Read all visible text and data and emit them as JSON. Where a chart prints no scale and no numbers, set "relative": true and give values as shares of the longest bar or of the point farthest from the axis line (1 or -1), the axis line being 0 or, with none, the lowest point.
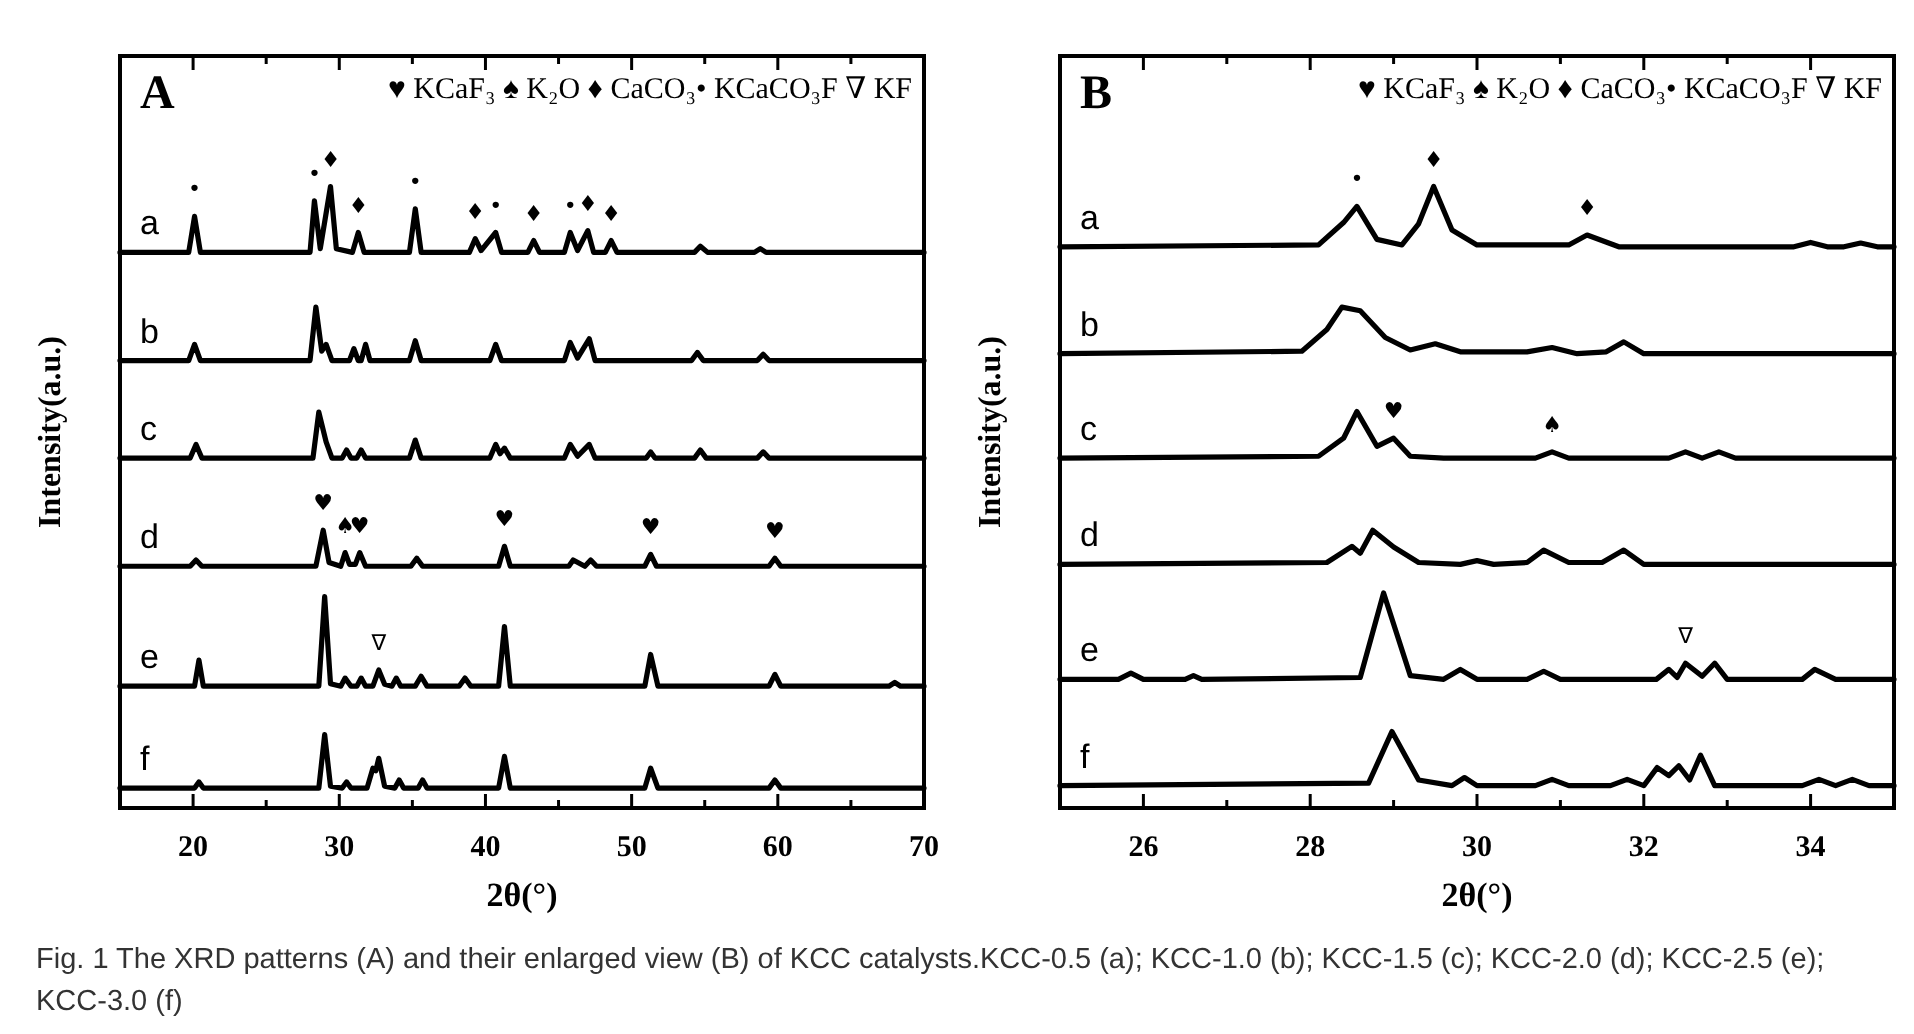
{
  "chart_data": [
    {
      "type": "line",
      "title": "A",
      "xlabel": "2θ(°)",
      "ylabel": "Intensity(a.u.)",
      "relative": true,
      "line_style": "solid",
      "xlim": [
        15,
        70
      ],
      "xticks": [
        20,
        {
          "value": 25,
          "label": null
        },
        30,
        {
          "value": 35,
          "label": null
        },
        40,
        {
          "value": 45,
          "label": null
        },
        50,
        {
          "value": 55,
          "label": null
        },
        60,
        {
          "value": 65,
          "label": null
        },
        70
      ],
      "series": [
        {
          "name": "a",
          "color": "#000000",
          "x": [
            15,
            19.7,
            20.1,
            20.5,
            28,
            28.3,
            28.7,
            29.4,
            29.8,
            30.9,
            31.3,
            31.7,
            34.8,
            35.2,
            35.6,
            38.9,
            39.3,
            39.7,
            40.7,
            41.1,
            42.9,
            43.3,
            43.7,
            45.4,
            45.8,
            46.3,
            47.0,
            47.4,
            48.2,
            48.6,
            49,
            54.3,
            54.7,
            55.2,
            58.4,
            58.8,
            59.2,
            70
          ],
          "values": [
            0.894,
            0.894,
            0.952,
            0.894,
            0.894,
            0.977,
            0.9,
            1.0,
            0.9,
            0.894,
            0.926,
            0.894,
            0.894,
            0.964,
            0.894,
            0.894,
            0.916,
            0.897,
            0.926,
            0.894,
            0.894,
            0.913,
            0.894,
            0.894,
            0.926,
            0.897,
            0.929,
            0.894,
            0.894,
            0.913,
            0.894,
            0.894,
            0.904,
            0.894,
            0.894,
            0.9,
            0.894,
            0.894
          ]
        },
        {
          "name": "b",
          "color": "#000000",
          "x": [
            15,
            19.7,
            20.1,
            20.5,
            28,
            28.4,
            28.8,
            29.1,
            29.5,
            30.7,
            31.0,
            31.3,
            31.5,
            31.8,
            32.1,
            34.8,
            35.2,
            35.6,
            40.3,
            40.7,
            41.1,
            45.4,
            45.8,
            46.3,
            47.1,
            47.5,
            54.1,
            54.5,
            54.9,
            58.6,
            59.0,
            59.4,
            70
          ],
          "values": [
            0.72,
            0.72,
            0.746,
            0.72,
            0.72,
            0.806,
            0.735,
            0.746,
            0.72,
            0.72,
            0.739,
            0.72,
            0.72,
            0.746,
            0.72,
            0.72,
            0.752,
            0.72,
            0.72,
            0.746,
            0.72,
            0.72,
            0.749,
            0.724,
            0.755,
            0.72,
            0.72,
            0.733,
            0.72,
            0.72,
            0.73,
            0.72,
            0.72
          ]
        },
        {
          "name": "c",
          "color": "#000000",
          "x": [
            15,
            19.8,
            20.2,
            20.6,
            28.2,
            28.6,
            29.1,
            29.5,
            30.2,
            30.5,
            30.8,
            31.2,
            31.5,
            31.8,
            34.8,
            35.2,
            35.6,
            40.3,
            40.7,
            41.0,
            41.3,
            41.7,
            45.4,
            45.8,
            46.3,
            47.1,
            47.5,
            51.0,
            51.3,
            51.6,
            54.3,
            54.7,
            55.1,
            58.6,
            59.0,
            59.4,
            70
          ],
          "values": [
            0.563,
            0.563,
            0.585,
            0.563,
            0.563,
            0.637,
            0.589,
            0.563,
            0.563,
            0.576,
            0.563,
            0.563,
            0.576,
            0.563,
            0.563,
            0.592,
            0.563,
            0.563,
            0.585,
            0.57,
            0.579,
            0.563,
            0.563,
            0.585,
            0.566,
            0.585,
            0.563,
            0.563,
            0.573,
            0.563,
            0.563,
            0.576,
            0.563,
            0.563,
            0.573,
            0.563,
            0.563
          ]
        },
        {
          "name": "d",
          "color": "#000000",
          "x": [
            15,
            19.8,
            20.2,
            20.6,
            28.4,
            28.9,
            29.3,
            30.1,
            30.4,
            30.7,
            31.1,
            31.4,
            31.8,
            34.9,
            35.3,
            35.7,
            40.9,
            41.3,
            41.7,
            45.7,
            46,
            46.8,
            47.2,
            47.6,
            50.9,
            51.3,
            51.7,
            59.4,
            59.8,
            60.2,
            70
          ],
          "values": [
            0.389,
            0.389,
            0.399,
            0.389,
            0.389,
            0.447,
            0.395,
            0.389,
            0.411,
            0.392,
            0.392,
            0.411,
            0.389,
            0.389,
            0.402,
            0.389,
            0.389,
            0.421,
            0.389,
            0.389,
            0.399,
            0.389,
            0.399,
            0.389,
            0.389,
            0.408,
            0.389,
            0.389,
            0.402,
            0.389,
            0.389
          ]
        },
        {
          "name": "e",
          "color": "#000000",
          "x": [
            15,
            20.1,
            20.4,
            20.7,
            28.6,
            29.0,
            29.4,
            30.1,
            30.4,
            30.8,
            31.2,
            31.5,
            31.8,
            32.3,
            32.7,
            33.1,
            33.6,
            33.9,
            34.2,
            35.2,
            35.6,
            36,
            38.2,
            38.6,
            39,
            40.9,
            41.3,
            41.7,
            50.9,
            51.3,
            51.8,
            59.4,
            59.8,
            60.2,
            67.6,
            68,
            68.4,
            70
          ],
          "values": [
            0.196,
            0.196,
            0.238,
            0.196,
            0.196,
            0.34,
            0.2,
            0.196,
            0.209,
            0.196,
            0.196,
            0.209,
            0.196,
            0.196,
            0.222,
            0.199,
            0.196,
            0.209,
            0.196,
            0.196,
            0.212,
            0.196,
            0.196,
            0.209,
            0.196,
            0.196,
            0.292,
            0.196,
            0.196,
            0.247,
            0.196,
            0.196,
            0.215,
            0.196,
            0.196,
            0.202,
            0.196,
            0.196
          ]
        },
        {
          "name": "f",
          "color": "#000000",
          "x": [
            15,
            20.1,
            20.4,
            20.7,
            28.6,
            29.0,
            29.4,
            30.2,
            30.5,
            30.8,
            31.9,
            32.3,
            32.5,
            32.7,
            33.1,
            33.8,
            34.1,
            34.4,
            35.4,
            35.7,
            36,
            40.9,
            41.3,
            41.7,
            50.9,
            51.3,
            51.8,
            59.4,
            59.8,
            60.2,
            70
          ],
          "values": [
            0.032,
            0.032,
            0.042,
            0.032,
            0.032,
            0.118,
            0.035,
            0.032,
            0.042,
            0.032,
            0.032,
            0.064,
            0.06,
            0.08,
            0.035,
            0.032,
            0.045,
            0.032,
            0.032,
            0.045,
            0.032,
            0.032,
            0.083,
            0.032,
            0.032,
            0.064,
            0.032,
            0.032,
            0.045,
            0.032,
            0.032
          ]
        }
      ],
      "annotations": [
        "♥ KCaF₃ ♠ K₂O ♦ CaCO₃• KCaCO₃F ∇ KF",
        "Fig. 1 The XRD patterns (A) and their enlarged view (B) of KCC catalysts.KCC-0.5 (a); KCC-1.0 (b); KCC-1.5 (c); KCC-2.0 (d); KCC-2.5 (e); KCC-3.0 (f)",
        {
          "text": "•",
          "x": 20.1,
          "y": 0.952
        },
        {
          "text": "•",
          "x": 28.3,
          "y": 0.977
        },
        {
          "text": "♦",
          "x": 29.4,
          "y": 1.0
        },
        {
          "text": "♦",
          "x": 31.3,
          "y": 0.926
        },
        {
          "text": "•",
          "x": 35.2,
          "y": 0.964
        },
        {
          "text": "♦",
          "x": 39.3,
          "y": 0.916
        },
        {
          "text": "•",
          "x": 40.7,
          "y": 0.926
        },
        {
          "text": "♦",
          "x": 43.3,
          "y": 0.913
        },
        {
          "text": "•",
          "x": 45.8,
          "y": 0.926
        },
        {
          "text": "♦",
          "x": 47.0,
          "y": 0.929
        },
        {
          "text": "♦",
          "x": 48.6,
          "y": 0.913
        },
        {
          "text": "♥",
          "x": 28.9,
          "y": 0.447
        },
        {
          "text": "♠",
          "x": 30.4,
          "y": 0.411
        },
        {
          "text": "♥",
          "x": 31.4,
          "y": 0.411
        },
        {
          "text": "♥",
          "x": 41.3,
          "y": 0.421
        },
        {
          "text": "♥",
          "x": 51.3,
          "y": 0.408
        },
        {
          "text": "♥",
          "x": 59.8,
          "y": 0.402
        },
        {
          "text": "∇",
          "x": 32.7,
          "y": 0.222
        }
      ]
    },
    {
      "type": "line",
      "title": "B",
      "xlabel": "2θ(°)",
      "ylabel": "Intensity(a.u.)",
      "relative": true,
      "line_style": "solid",
      "xlim": [
        25,
        35
      ],
      "xticks": [
        {
          "value": 25,
          "label": null
        },
        26,
        {
          "value": 27,
          "label": null
        },
        28,
        {
          "value": 29,
          "label": null
        },
        30,
        {
          "value": 31,
          "label": null
        },
        32,
        {
          "value": 33,
          "label": null
        },
        34,
        {
          "value": 35,
          "label": null
        }
      ],
      "series": [
        {
          "name": "a",
          "color": "#000000",
          "x": [
            25,
            28.1,
            28.4,
            28.56,
            28.8,
            29.1,
            29.3,
            29.48,
            29.7,
            30,
            31.1,
            31.32,
            31.7,
            33.8,
            34.0,
            34.2,
            34.4,
            34.6,
            34.8,
            35
          ],
          "values": [
            0.903,
            0.906,
            0.942,
            0.968,
            0.915,
            0.906,
            0.94,
            1.0,
            0.93,
            0.906,
            0.906,
            0.922,
            0.903,
            0.903,
            0.91,
            0.903,
            0.903,
            0.909,
            0.903,
            0.903
          ]
        },
        {
          "name": "b",
          "color": "#000000",
          "x": [
            25,
            27.9,
            28.2,
            28.38,
            28.6,
            28.9,
            29.2,
            29.5,
            29.8,
            30.6,
            30.9,
            31.2,
            31.55,
            31.76,
            32,
            35
          ],
          "values": [
            0.731,
            0.735,
            0.77,
            0.806,
            0.8,
            0.757,
            0.737,
            0.747,
            0.734,
            0.734,
            0.741,
            0.731,
            0.734,
            0.75,
            0.731,
            0.731
          ]
        },
        {
          "name": "c",
          "color": "#000000",
          "x": [
            25,
            28.1,
            28.4,
            28.56,
            28.8,
            29.0,
            29.2,
            29.6,
            30.7,
            30.9,
            31.1,
            32.3,
            32.5,
            32.7,
            32.9,
            33.1,
            35
          ],
          "values": [
            0.563,
            0.566,
            0.595,
            0.638,
            0.582,
            0.595,
            0.566,
            0.563,
            0.563,
            0.573,
            0.563,
            0.563,
            0.573,
            0.563,
            0.573,
            0.563,
            0.563
          ]
        },
        {
          "name": "d",
          "color": "#000000",
          "x": [
            25,
            28.2,
            28.5,
            28.6,
            28.75,
            29.0,
            29.3,
            29.8,
            30,
            30.2,
            30.6,
            30.8,
            31.1,
            31.5,
            31.76,
            32,
            35
          ],
          "values": [
            0.392,
            0.395,
            0.421,
            0.41,
            0.447,
            0.42,
            0.395,
            0.392,
            0.398,
            0.392,
            0.395,
            0.415,
            0.395,
            0.395,
            0.415,
            0.392,
            0.392
          ]
        },
        {
          "name": "e",
          "color": "#000000",
          "x": [
            25,
            25.7,
            25.85,
            26,
            26.5,
            26.6,
            26.7,
            28.6,
            28.88,
            29.2,
            29.6,
            29.8,
            30,
            30.6,
            30.8,
            31,
            32.15,
            32.3,
            32.4,
            32.5,
            32.7,
            32.85,
            33,
            33.9,
            34.05,
            34.3,
            35
          ],
          "values": [
            0.207,
            0.207,
            0.217,
            0.207,
            0.207,
            0.213,
            0.207,
            0.21,
            0.346,
            0.213,
            0.207,
            0.223,
            0.207,
            0.207,
            0.22,
            0.207,
            0.207,
            0.223,
            0.21,
            0.233,
            0.212,
            0.233,
            0.207,
            0.207,
            0.223,
            0.207,
            0.207
          ]
        },
        {
          "name": "f",
          "color": "#000000",
          "x": [
            25,
            28.7,
            28.98,
            29.3,
            29.7,
            29.85,
            30,
            30.7,
            30.9,
            31.1,
            31.6,
            31.8,
            32,
            32.16,
            32.3,
            32.42,
            32.55,
            32.68,
            32.85,
            33.9,
            34.1,
            34.3,
            34.5,
            34.7,
            35
          ],
          "values": [
            0.036,
            0.04,
            0.123,
            0.045,
            0.036,
            0.049,
            0.036,
            0.036,
            0.046,
            0.036,
            0.036,
            0.046,
            0.036,
            0.065,
            0.052,
            0.068,
            0.045,
            0.085,
            0.036,
            0.036,
            0.046,
            0.036,
            0.046,
            0.036,
            0.036
          ]
        }
      ],
      "annotations": [
        "♥ KCaF₃ ♠ K₂O ♦ CaCO₃• KCaCO₃F ∇ KF",
        {
          "text": "•",
          "x": 28.56,
          "y": 0.968
        },
        {
          "text": "♦",
          "x": 29.48,
          "y": 1.0
        },
        {
          "text": "♦",
          "x": 31.32,
          "y": 0.922
        },
        {
          "text": "♥",
          "x": 29.0,
          "y": 0.595
        },
        {
          "text": "♠",
          "x": 30.9,
          "y": 0.573
        },
        {
          "text": "∇",
          "x": 32.5,
          "y": 0.233
        }
      ]
    }
  ]
}
